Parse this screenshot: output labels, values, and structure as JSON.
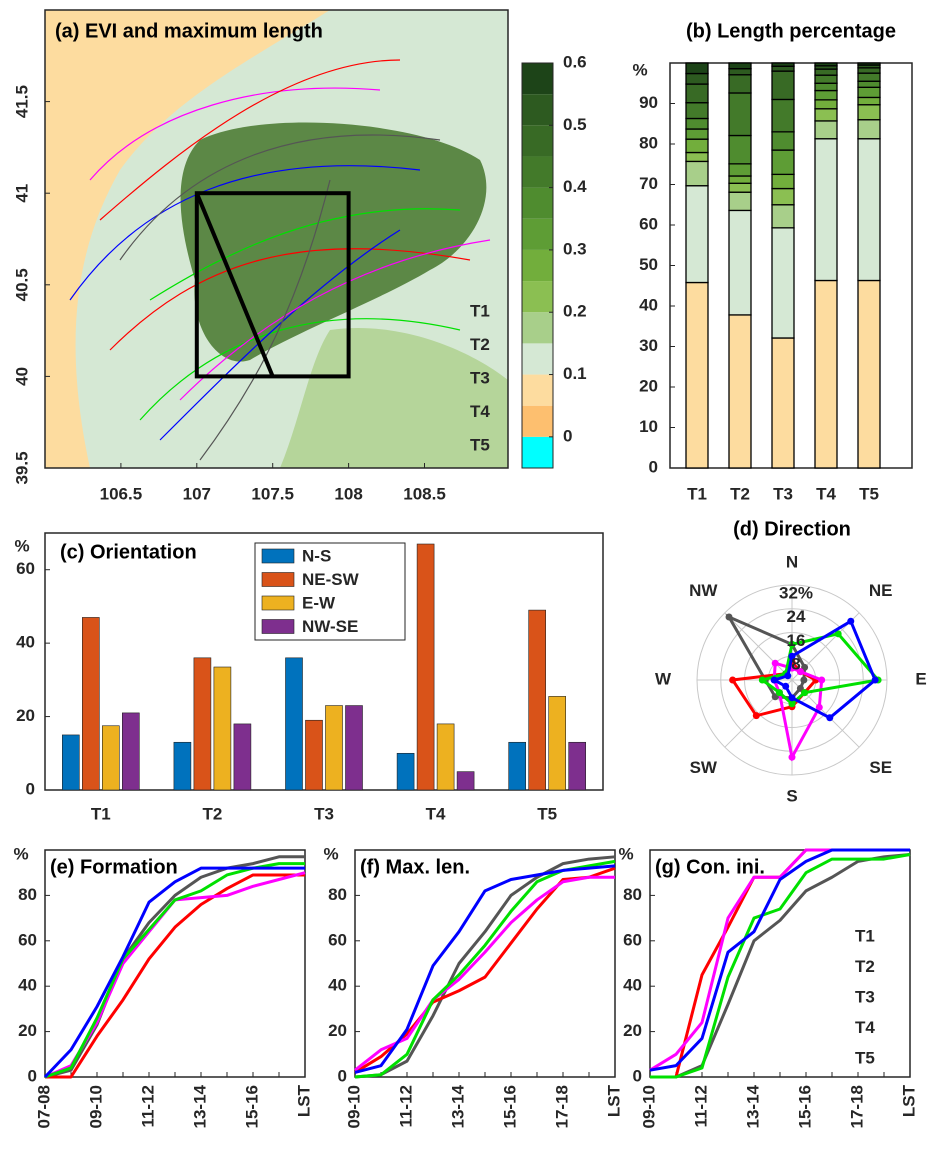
{
  "chart_data": [
    {
      "type": "map",
      "title": "(a) EVI and maximum length",
      "xlim": [
        106,
        109.05
      ],
      "ylim": [
        39.5,
        42
      ],
      "xticks": [
        106.5,
        107,
        107.5,
        108,
        108.5
      ],
      "yticks": [
        39.5,
        40,
        40.5,
        41,
        41.5
      ],
      "box": {
        "x": [
          107,
          108
        ],
        "y": [
          40,
          41
        ]
      },
      "diagonal": {
        "x": [
          107,
          107.5
        ],
        "y": [
          41,
          40
        ]
      },
      "series": [
        {
          "name": "T1",
          "color": "#555555"
        },
        {
          "name": "T2",
          "color": "#ff0000"
        },
        {
          "name": "T3",
          "color": "#ff00ff"
        },
        {
          "name": "T4",
          "color": "#00e000"
        },
        {
          "name": "T5",
          "color": "#0000ff"
        }
      ],
      "colorbar": {
        "lim": [
          -0.05,
          0.6
        ],
        "ticks": [
          0,
          0.1,
          0.2,
          0.3,
          0.4,
          0.5,
          0.6
        ],
        "colors": [
          "#00ffff",
          "#fdbf6f",
          "#fddc9f",
          "#d5e8d4",
          "#a8cf8a",
          "#8bbf52",
          "#72ae3c",
          "#5e9d35",
          "#4f8c2f",
          "#437a2a",
          "#386a25",
          "#2d5a20",
          "#1d4418"
        ]
      }
    },
    {
      "type": "stacked",
      "title": "(b) Length percentage",
      "ylabel": "%",
      "categories": [
        "T1",
        "T2",
        "T3",
        "T4",
        "T5"
      ],
      "ylim": [
        0,
        100
      ],
      "yticks": [
        0,
        10,
        20,
        30,
        40,
        50,
        60,
        70,
        80,
        90
      ],
      "series": [
        {
          "color": "#fddc9f",
          "values": [
            45.8,
            37.8,
            32.1,
            46.3,
            46.3
          ]
        },
        {
          "color": "#d5e8d4",
          "values": [
            23.9,
            25.8,
            27.2,
            35,
            35
          ]
        },
        {
          "color": "#a8cf8a",
          "values": [
            6,
            4.5,
            5.7,
            4.4,
            4.7
          ]
        },
        {
          "color": "#8bbf52",
          "values": [
            2.2,
            2.2,
            4,
            3,
            3.7
          ]
        },
        {
          "color": "#72ae3c",
          "values": [
            3.3,
            1.8,
            3.5,
            2.2,
            1.8
          ]
        },
        {
          "color": "#5e9d35",
          "values": [
            2.5,
            3,
            6,
            2.3,
            2.5
          ]
        },
        {
          "color": "#4f8c2f",
          "values": [
            2.6,
            7,
            4.5,
            1.8,
            1.5
          ]
        },
        {
          "color": "#437a2a",
          "values": [
            3.9,
            10.5,
            8,
            2,
            2
          ]
        },
        {
          "color": "#386a25",
          "values": [
            4.6,
            4.5,
            7,
            1.5,
            1.3
          ]
        },
        {
          "color": "#2d5a20",
          "values": [
            2.6,
            1.5,
            1.2,
            0.8,
            0.7
          ]
        },
        {
          "color": "#1d4418",
          "values": [
            2.6,
            1.4,
            0.8,
            0.7,
            0.5
          ]
        }
      ]
    },
    {
      "type": "bar",
      "title": "(c) Orientation",
      "ylabel": "%",
      "categories": [
        "T1",
        "T2",
        "T3",
        "T4",
        "T5"
      ],
      "ylim": [
        0,
        70
      ],
      "yticks": [
        0,
        20,
        40,
        60
      ],
      "series": [
        {
          "name": "N-S",
          "color": "#0072bd",
          "values": [
            15,
            13,
            36,
            10,
            13
          ]
        },
        {
          "name": "NE-SW",
          "color": "#d95319",
          "values": [
            47,
            36,
            19,
            67,
            49
          ]
        },
        {
          "name": "E-W",
          "color": "#edb120",
          "values": [
            17.5,
            33.5,
            23,
            18,
            25.5
          ]
        },
        {
          "name": "NW-SE",
          "color": "#7e2f8e",
          "values": [
            21,
            18,
            23,
            5,
            13
          ]
        }
      ]
    },
    {
      "type": "radar",
      "title": "(d) Direction",
      "categories": [
        "N",
        "NE",
        "E",
        "SE",
        "S",
        "SW",
        "W",
        "NW"
      ],
      "rlim": [
        0,
        32
      ],
      "rticks": [
        8,
        16,
        24,
        {
          "value": 32,
          "label": "32%"
        }
      ],
      "series": [
        {
          "color": "#555555",
          "values": [
            12,
            6,
            4,
            4,
            6,
            8,
            9,
            30
          ]
        },
        {
          "color": "#ff0000",
          "values": [
            6,
            4,
            8,
            6,
            9,
            17,
            20,
            3
          ]
        },
        {
          "color": "#ff00ff",
          "values": [
            4,
            4,
            10,
            13,
            26,
            6,
            6,
            8
          ]
        },
        {
          "color": "#00e000",
          "values": [
            12,
            22,
            29,
            6,
            8,
            6,
            10,
            3
          ]
        },
        {
          "color": "#0000ff",
          "values": [
            8,
            28,
            28,
            18,
            6,
            3,
            6,
            2
          ]
        }
      ]
    },
    {
      "type": "line",
      "title": "(e) Formation",
      "ylabel": "%",
      "xlabel": "LST",
      "categories": [
        "07-08",
        null,
        "09-10",
        null,
        "11-12",
        null,
        "13-14",
        null,
        "15-16",
        null,
        null
      ],
      "ylim": [
        0,
        100
      ],
      "yticks": [
        0,
        20,
        40,
        60,
        80
      ],
      "series": [
        {
          "color": "#555555",
          "values": [
            0,
            3,
            23,
            52,
            68,
            80,
            88,
            92,
            94,
            97,
            97
          ]
        },
        {
          "color": "#ff0000",
          "values": [
            0,
            0,
            18,
            34,
            52,
            66,
            76,
            83,
            89,
            89,
            89
          ]
        },
        {
          "color": "#ff00ff",
          "values": [
            0,
            5,
            24,
            50,
            64,
            78,
            79,
            80,
            84,
            87,
            90
          ]
        },
        {
          "color": "#00e000",
          "values": [
            0,
            4,
            26,
            52,
            65,
            78,
            82,
            89,
            92,
            94,
            94
          ]
        },
        {
          "color": "#0000ff",
          "values": [
            0,
            12,
            31,
            53,
            77,
            86,
            92,
            92,
            92,
            92,
            92
          ]
        }
      ]
    },
    {
      "type": "line",
      "title": "(f) Max. len.",
      "ylabel": "%",
      "xlabel": "LST",
      "categories": [
        "09-10",
        null,
        "11-12",
        null,
        "13-14",
        null,
        "15-16",
        null,
        "17-18",
        null,
        null
      ],
      "ylim": [
        0,
        100
      ],
      "yticks": [
        0,
        20,
        40,
        60,
        80
      ],
      "series": [
        {
          "color": "#555555",
          "values": [
            0,
            1,
            7,
            27,
            50,
            64,
            80,
            88,
            94,
            96,
            97
          ]
        },
        {
          "color": "#ff0000",
          "values": [
            2,
            9,
            19,
            33,
            38,
            44,
            59,
            74,
            87,
            88,
            92
          ]
        },
        {
          "color": "#ff00ff",
          "values": [
            3,
            12,
            17,
            34,
            43,
            55,
            68,
            78,
            86,
            88,
            88
          ]
        },
        {
          "color": "#00e000",
          "values": [
            0,
            1,
            10,
            34,
            45,
            58,
            73,
            86,
            91,
            93,
            95
          ]
        },
        {
          "color": "#0000ff",
          "values": [
            2,
            5,
            21,
            49,
            64,
            82,
            87,
            89,
            91,
            92,
            93
          ]
        }
      ]
    },
    {
      "type": "line",
      "title": "(g) Con. ini.",
      "ylabel": "%",
      "xlabel": "LST",
      "legend": "lower right",
      "categories": [
        "09-10",
        null,
        "11-12",
        null,
        "13-14",
        null,
        "15-16",
        null,
        "17-18",
        null,
        null
      ],
      "ylim": [
        0,
        100
      ],
      "yticks": [
        0,
        20,
        40,
        60,
        80
      ],
      "series": [
        {
          "name": "T1",
          "color": "#555555",
          "values": [
            0,
            0,
            5,
            32,
            60,
            69,
            82,
            88,
            95,
            97,
            98
          ]
        },
        {
          "name": "T2",
          "color": "#ff0000",
          "values": [
            0,
            0,
            45,
            66,
            88,
            88,
            100,
            100,
            100,
            100,
            100
          ]
        },
        {
          "name": "T3",
          "color": "#ff00ff",
          "values": [
            3,
            10,
            24,
            70,
            88,
            88,
            100,
            100,
            100,
            100,
            100
          ]
        },
        {
          "name": "T4",
          "color": "#00e000",
          "values": [
            0,
            0,
            4,
            44,
            70,
            74,
            90,
            96,
            96,
            96,
            98
          ]
        },
        {
          "name": "T5",
          "color": "#0000ff",
          "values": [
            3,
            5,
            17,
            55,
            64,
            87,
            95,
            100,
            100,
            100,
            100
          ]
        }
      ]
    }
  ]
}
